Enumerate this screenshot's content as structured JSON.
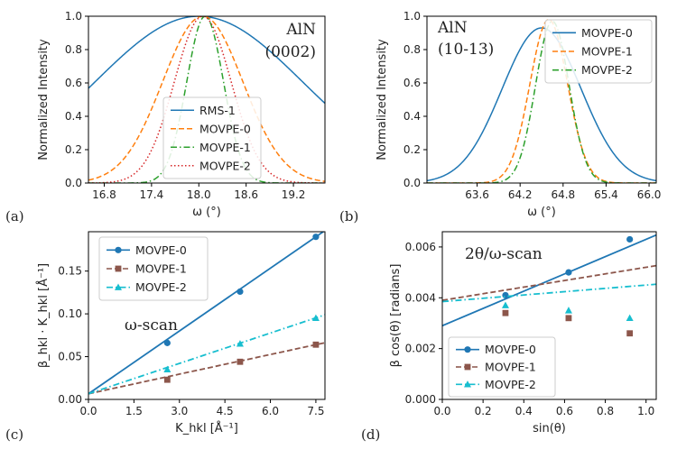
{
  "colors": {
    "c0": "#1f77b4",
    "c1": "#ff7f0e",
    "c2": "#2ca02c",
    "c3": "#d62728",
    "c5": "#8c564b",
    "c9": "#17becf"
  },
  "chart_data": [
    {
      "panel": "(a)",
      "type": "line",
      "annotation_lines": [
        "AlN",
        "(0002)"
      ],
      "xlabel": "ω (°)",
      "ylabel": "Normalized Intensity",
      "xlim": [
        16.6,
        19.6
      ],
      "ylim": [
        0.0,
        1.0
      ],
      "xticks": [
        "16.8",
        "17.4",
        "18.0",
        "18.6",
        "19.2"
      ],
      "yticks": [
        "0.0",
        "0.2",
        "0.4",
        "0.6",
        "0.8",
        "1.0"
      ],
      "legend_position": "lower-center",
      "series": [
        {
          "name": "RMS-1",
          "style": "solid",
          "color_key": "c0",
          "center": 18.0,
          "fwhm": 3.1
        },
        {
          "name": "MOVPE-0",
          "style": "dashed",
          "color_key": "c1",
          "center": 18.05,
          "fwhm": 1.2
        },
        {
          "name": "MOVPE-1",
          "style": "dashdot",
          "color_key": "c2",
          "center": 18.08,
          "fwhm": 0.55
        },
        {
          "name": "MOVPE-2",
          "style": "dotted",
          "color_key": "c3",
          "center": 18.05,
          "fwhm": 0.85
        }
      ]
    },
    {
      "panel": "(b)",
      "type": "line",
      "annotation_lines": [
        "AlN",
        "(10-13)"
      ],
      "xlabel": "ω (°)",
      "ylabel": "Normalized Intensity",
      "xlim": [
        62.9,
        66.1
      ],
      "ylim": [
        0.0,
        1.0
      ],
      "xticks": [
        "63.6",
        "64.2",
        "64.8",
        "65.4",
        "66.0"
      ],
      "yticks": [
        "0.0",
        "0.2",
        "0.4",
        "0.6",
        "0.8",
        "1.0"
      ],
      "legend_position": "top-right",
      "series": [
        {
          "name": "MOVPE-0",
          "style": "solid",
          "color_key": "c0",
          "center": 64.5,
          "fwhm": 1.3,
          "peak": 0.93
        },
        {
          "name": "MOVPE-1",
          "style": "dashed",
          "color_key": "c1",
          "center": 64.6,
          "fwhm": 0.62,
          "peak": 0.98
        },
        {
          "name": "MOVPE-2",
          "style": "dashdot",
          "color_key": "c2",
          "center": 64.65,
          "fwhm": 0.55,
          "peak": 0.97
        }
      ]
    },
    {
      "panel": "(c)",
      "type": "line",
      "annotation": "ω-scan",
      "xlabel": "K_hkl [Å⁻¹]",
      "ylabel": "β_hkl · K_hkl [Å⁻¹]",
      "xlim": [
        0.0,
        7.8
      ],
      "ylim": [
        0.0,
        0.196
      ],
      "xticks": [
        "0.0",
        "1.5",
        "3.0",
        "4.5",
        "6.0",
        "7.5"
      ],
      "yticks": [
        "0.00",
        "0.05",
        "0.10",
        "0.15"
      ],
      "legend_position": "top-left",
      "series": [
        {
          "name": "MOVPE-0",
          "style": "solid",
          "marker": "circle",
          "color_key": "c0",
          "x": [
            2.6,
            5.0,
            7.5
          ],
          "y": [
            0.066,
            0.126,
            0.19
          ],
          "fit": [
            0.0066,
            0.02446
          ]
        },
        {
          "name": "MOVPE-1",
          "style": "dashed",
          "marker": "square",
          "color_key": "c5",
          "x": [
            2.6,
            5.0,
            7.5
          ],
          "y": [
            0.023,
            0.044,
            0.064
          ],
          "fit": [
            0.0066,
            0.00765
          ]
        },
        {
          "name": "MOVPE-2",
          "style": "dashdot",
          "marker": "triangle",
          "color_key": "c9",
          "x": [
            2.6,
            5.0,
            7.5
          ],
          "y": [
            0.035,
            0.065,
            0.095
          ],
          "fit": [
            0.0066,
            0.01183
          ]
        }
      ]
    },
    {
      "panel": "(d)",
      "type": "line",
      "annotation": "2θ/ω-scan",
      "xlabel": "sin(θ)",
      "ylabel": "β cos(θ) [radians]",
      "xlim": [
        0.0,
        1.05
      ],
      "ylim": [
        0.0,
        0.0066
      ],
      "xticks": [
        "0.0",
        "0.2",
        "0.4",
        "0.6",
        "0.8",
        "1.0"
      ],
      "yticks": [
        "0.000",
        "0.002",
        "0.004",
        "0.006"
      ],
      "legend_position": "lower-left",
      "series": [
        {
          "name": "MOVPE-0",
          "style": "solid",
          "marker": "circle",
          "color_key": "c0",
          "x": [
            0.31,
            0.62,
            0.92
          ],
          "y": [
            0.0041,
            0.005,
            0.0063
          ],
          "fit": [
            0.0029,
            0.0034
          ]
        },
        {
          "name": "MOVPE-1",
          "style": "dashed",
          "marker": "square",
          "color_key": "c5",
          "x": [
            0.31,
            0.62,
            0.92
          ],
          "y": [
            0.0034,
            0.0032,
            0.0026
          ],
          "fit": [
            0.0039,
            0.0013
          ]
        },
        {
          "name": "MOVPE-2",
          "style": "dashdot",
          "marker": "triangle",
          "color_key": "c9",
          "x": [
            0.31,
            0.62,
            0.92
          ],
          "y": [
            0.0037,
            0.0035,
            0.0032
          ],
          "fit": [
            0.00385,
            0.00065
          ]
        }
      ]
    }
  ]
}
